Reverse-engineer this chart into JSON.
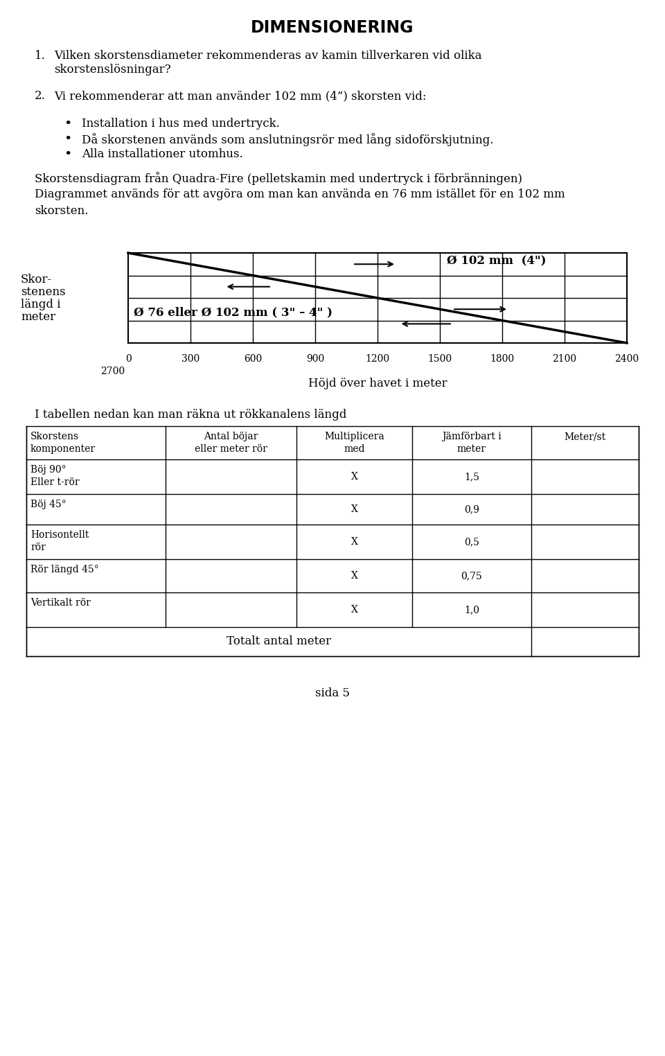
{
  "title": "DIMENSIONERING",
  "section1_num": "1.",
  "section1_text_line1": "Vilken skorstensdiameter rekommenderas av kamin tillverkaren vid olika",
  "section1_text_line2": "skorstenslösningar?",
  "section2_num": "2.",
  "section2_text": "Vi rekommenderar att man använder 102 mm (4”) skorsten vid:",
  "bullet1": "Installation i hus med undertryck.",
  "bullet2": "Då skorstenen används som anslutningsrör med lång sidoförskjutning.",
  "bullet3": "Alla installationer utomhus.",
  "diagram_intro": "Skorstensdiagram från Quadra-Fire (pelletskamin med undertryck i förbränningen)",
  "diagram_desc_line1": "Diagrammet används för att avgöra om man kan använda en 76 mm istället för en 102 mm",
  "diagram_desc_line2": "skorsten.",
  "ylabel_lines": [
    "Skor-",
    "stenens",
    "längd i",
    "meter"
  ],
  "xlabel": "Höjd över havet i meter",
  "xticks": [
    0,
    300,
    600,
    900,
    1200,
    1500,
    1800,
    2100,
    2400
  ],
  "x2700_label": "2700",
  "label_102": "Ø 102 mm  (4\")",
  "label_76": "Ø 76 eller Ø 102 mm ( 3\" – 4\" )",
  "table_intro": "I tabellen nedan kan man räkna ut rökkanalens längd",
  "table_headers": [
    "Skorstens\nkomponenter",
    "Antal böjar\neller meter rör",
    "Multiplicera\nmed",
    "Jämförbart i\nmeter",
    "Meter/st"
  ],
  "table_rows": [
    [
      "Böj 90°\nEller t-rör",
      "",
      "X",
      "1,5",
      ""
    ],
    [
      "Böj 45°",
      "",
      "X",
      "0,9",
      ""
    ],
    [
      "Horisontellt\nrör",
      "",
      "X",
      "0,5",
      ""
    ],
    [
      "Rör längd 45°",
      "",
      "X",
      "0,75",
      ""
    ],
    [
      "Vertikalt rör",
      "",
      "X",
      "1,0",
      ""
    ]
  ],
  "table_footer": "Totalt antal meter",
  "page": "sida 5",
  "background_color": "#ffffff",
  "text_color": "#000000",
  "font_size_title": 17,
  "font_size_body": 12,
  "font_size_small": 10
}
